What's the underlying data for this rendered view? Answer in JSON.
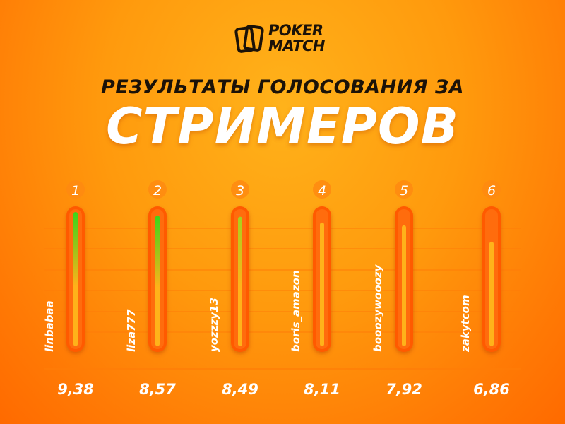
{
  "brand": {
    "line1": "POKER",
    "line2": "MATCH"
  },
  "title": {
    "line1": "РЕЗУЛЬТАТЫ ГОЛОСОВАНИЯ ЗА",
    "line2": "СТРИМЕРОВ"
  },
  "colors": {
    "dark": "#1b1208",
    "tube": "#ff5a05",
    "tube_inner": "#ff7815",
    "fill_top_high": "#39d61a",
    "fill_top_mid": "#a6d11c",
    "fill_bottom": "#ffb21a",
    "rank_circle": "#ff8a10",
    "grid": "#ff7d08"
  },
  "chart_data": {
    "type": "bar",
    "orientation": "vertical",
    "categories": [
      "linbabaa",
      "liza777",
      "yozzzy13",
      "boris_amazon",
      "booozywooozy",
      "zakytcom"
    ],
    "ranks": [
      "1",
      "2",
      "3",
      "4",
      "5",
      "6"
    ],
    "values": [
      9.38,
      8.57,
      8.49,
      8.11,
      7.92,
      6.86
    ],
    "value_labels": [
      "9,38",
      "8,57",
      "8,49",
      "8,11",
      "7,92",
      "6,86"
    ],
    "ylim": [
      0,
      10
    ],
    "grid": true
  }
}
